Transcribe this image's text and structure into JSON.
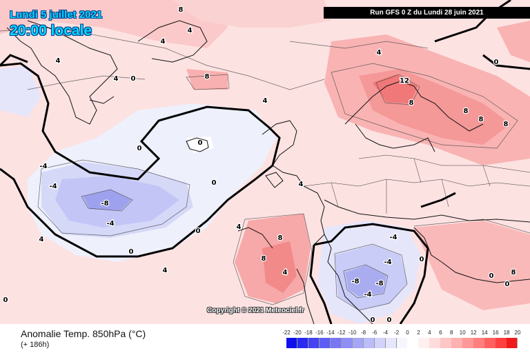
{
  "header": {
    "date_line": "Lundi 5 juillet 2021",
    "time_line": "20:00 locale",
    "run_info": "Run GFS 0 Z du Lundi 28 juin 2021"
  },
  "copyright": "Copyright © 2021 Meteociel.fr",
  "footer": {
    "title": "Anomalie Temp. 850hPa (°C)",
    "forecast_hour": "(+ 186h)"
  },
  "scale": {
    "labels": [
      "-22",
      "-20",
      "-18",
      "-16",
      "-14",
      "-12",
      "-10",
      "-8",
      "-6",
      "-4",
      "-2",
      "0",
      "2",
      "4",
      "6",
      "8",
      "10",
      "12",
      "14",
      "16",
      "18",
      "20"
    ],
    "colors": [
      "#1010ee",
      "#2a2af0",
      "#4444f2",
      "#5e5ef4",
      "#7878f5",
      "#8f8ff6",
      "#a6a6f7",
      "#bcbcf9",
      "#d2d2fb",
      "#e6e6fd",
      "#f6f6ff",
      "#ffffff",
      "#fff0f0",
      "#ffdcdc",
      "#ffc6c6",
      "#ffb0b0",
      "#ff9898",
      "#ff7e7e",
      "#ff6060",
      "#ff4040",
      "#f01a1a"
    ]
  },
  "contour_labels": [
    {
      "text": "8",
      "lon": 262,
      "lat": 17
    },
    {
      "text": "4",
      "lon": 275,
      "lat": 47
    },
    {
      "text": "4",
      "lon": 236,
      "lat": 63
    },
    {
      "text": "4",
      "lon": 84,
      "lat": 91
    },
    {
      "text": "4",
      "lon": 168,
      "lat": 117
    },
    {
      "text": "0",
      "lon": 193,
      "lat": 117
    },
    {
      "text": "8",
      "lon": 300,
      "lat": 114
    },
    {
      "text": "4",
      "lon": 384,
      "lat": 149
    },
    {
      "text": "4",
      "lon": 549,
      "lat": 79
    },
    {
      "text": "12",
      "lon": 586,
      "lat": 120
    },
    {
      "text": "8",
      "lon": 596,
      "lat": 152
    },
    {
      "text": "8",
      "lon": 675,
      "lat": 164
    },
    {
      "text": "8",
      "lon": 697,
      "lat": 176
    },
    {
      "text": "8",
      "lon": 733,
      "lat": 183
    },
    {
      "text": "0",
      "lon": 719,
      "lat": 93
    },
    {
      "text": "0",
      "lon": 202,
      "lat": 218
    },
    {
      "text": "0",
      "lon": 290,
      "lat": 210
    },
    {
      "text": "-4",
      "lon": 63,
      "lat": 244
    },
    {
      "text": "-4",
      "lon": 77,
      "lat": 273
    },
    {
      "text": "-8",
      "lon": 152,
      "lat": 298
    },
    {
      "text": "-4",
      "lon": 160,
      "lat": 327
    },
    {
      "text": "0",
      "lon": 310,
      "lat": 268
    },
    {
      "text": "0",
      "lon": 287,
      "lat": 338
    },
    {
      "text": "4",
      "lon": 60,
      "lat": 350
    },
    {
      "text": "0",
      "lon": 190,
      "lat": 368
    },
    {
      "text": "4",
      "lon": 346,
      "lat": 332
    },
    {
      "text": "4",
      "lon": 436,
      "lat": 270
    },
    {
      "text": "8",
      "lon": 406,
      "lat": 348
    },
    {
      "text": "8",
      "lon": 382,
      "lat": 378
    },
    {
      "text": "4",
      "lon": 413,
      "lat": 398
    },
    {
      "text": "4",
      "lon": 239,
      "lat": 395
    },
    {
      "text": "-4",
      "lon": 570,
      "lat": 347
    },
    {
      "text": "-4",
      "lon": 562,
      "lat": 383
    },
    {
      "text": "-8",
      "lon": 515,
      "lat": 411
    },
    {
      "text": "-8",
      "lon": 550,
      "lat": 414
    },
    {
      "text": "-4",
      "lon": 533,
      "lat": 430
    },
    {
      "text": "0",
      "lon": 540,
      "lat": 467
    },
    {
      "text": "0",
      "lon": 564,
      "lat": 467
    },
    {
      "text": "0",
      "lon": 611,
      "lat": 379
    },
    {
      "text": "0",
      "lon": 712,
      "lat": 403
    },
    {
      "text": "0",
      "lon": 735,
      "lat": 415
    },
    {
      "text": "8",
      "lon": 744,
      "lat": 398
    },
    {
      "text": "0",
      "lon": 8,
      "lat": 438
    }
  ]
}
